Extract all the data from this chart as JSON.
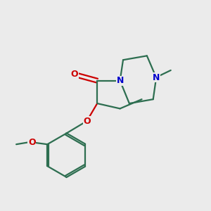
{
  "bg_color": "#ebebeb",
  "bond_color": "#2d6e50",
  "N_color": "#0000cc",
  "O_color": "#cc0000",
  "line_width": 1.6,
  "figsize": [
    3.0,
    3.0
  ],
  "dpi": 100,
  "xlim": [
    0,
    10
  ],
  "ylim": [
    0,
    10
  ]
}
